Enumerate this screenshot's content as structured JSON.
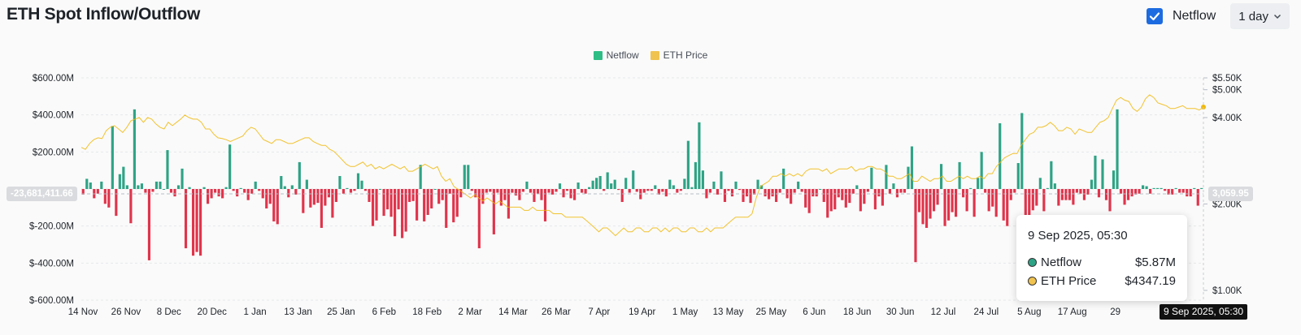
{
  "header": {
    "title": "ETH Spot Inflow/Outflow",
    "netflow_toggle_label": "Netflow",
    "interval_value": "1 day"
  },
  "colors": {
    "netflow_up": "#2ea385",
    "netflow_down": "#e0344b",
    "legend_netflow": "#2ebd85",
    "price_line": "#f0b90b",
    "grid": "#e6e8ea",
    "checkbox": "#1d6be0"
  },
  "icons": {
    "checkbox": "check-icon",
    "interval": "chevron-down-icon"
  },
  "crosshair": {
    "left_value": "-23,681,411.66",
    "right_value": "3,059.95",
    "time_label": "9 Sep 2025, 05:30"
  },
  "tooltip": {
    "time": "9 Sep 2025, 05:30",
    "rows": [
      {
        "label": "Netflow",
        "value": "$5.87M",
        "dot_color": "#2ea385"
      },
      {
        "label": "ETH Price",
        "value": "$4347.19",
        "dot_color": "#f0b90b"
      }
    ]
  },
  "chart_data": {
    "type": "bar",
    "title": "ETH Spot Inflow/Outflow",
    "legend": [
      "Netflow",
      "ETH Price"
    ],
    "legend_position": "top-center",
    "grid": true,
    "x_ticks": [
      "14 Nov",
      "26 Nov",
      "8 Dec",
      "20 Dec",
      "1 Jan",
      "13 Jan",
      "25 Jan",
      "6 Feb",
      "18 Feb",
      "2 Mar",
      "14 Mar",
      "26 Mar",
      "7 Apr",
      "19 Apr",
      "1 May",
      "13 May",
      "25 May",
      "6 Jun",
      "18 Jun",
      "30 Jun",
      "12 Jul",
      "24 Jul",
      "5 Aug",
      "17 Aug",
      "29"
    ],
    "y_left": {
      "ticks": [
        "$600.00M",
        "$400.00M",
        "$200.00M",
        "",
        "$-200.00M",
        "$-400.00M",
        "$-600.00M"
      ],
      "tick_values": [
        600,
        400,
        200,
        0,
        -200,
        -400,
        -600
      ],
      "ylim": [
        -600,
        600
      ],
      "unit": "USD millions"
    },
    "y_right": {
      "ticks": [
        "$5.50K",
        "$5.00K",
        "$4.00K",
        "$2.00K",
        "$1.00K"
      ],
      "tick_values": [
        5500,
        5000,
        4000,
        2000,
        1000
      ],
      "ylim": [
        1000,
        5500
      ],
      "scale": "log"
    },
    "series": [
      {
        "name": "Netflow",
        "type": "bar",
        "values": [
          -30,
          55,
          35,
          -50,
          -25,
          40,
          -80,
          -100,
          340,
          -145,
          80,
          120,
          20,
          -185,
          430,
          20,
          30,
          -20,
          -385,
          -15,
          40,
          40,
          0,
          210,
          -20,
          -40,
          20,
          110,
          -320,
          10,
          -360,
          -340,
          -360,
          10,
          -80,
          -50,
          -20,
          -40,
          -50,
          10,
          240,
          -10,
          -40,
          5,
          -20,
          -60,
          -25,
          40,
          -10,
          -50,
          -105,
          -80,
          -175,
          -190,
          70,
          15,
          -45,
          20,
          -30,
          145,
          -130,
          50,
          -100,
          -85,
          -75,
          -210,
          -90,
          -45,
          -155,
          -70,
          70,
          -25,
          5,
          -20,
          -10,
          85,
          45,
          -10,
          -70,
          -200,
          -170,
          0,
          -145,
          -110,
          -150,
          -255,
          -110,
          -265,
          -230,
          -70,
          -65,
          -170,
          130,
          -175,
          -140,
          -105,
          0,
          -80,
          -60,
          -210,
          -25,
          -180,
          -150,
          -45,
          130,
          130,
          -10,
          -45,
          -320,
          -80,
          -20,
          -15,
          -245,
          -20,
          -90,
          -60,
          -160,
          -20,
          -35,
          -60,
          -15,
          40,
          -20,
          -70,
          -25,
          -60,
          -175,
          -20,
          -30,
          -15,
          30,
          -45,
          -10,
          -50,
          -60,
          35,
          -20,
          -25,
          10,
          45,
          60,
          70,
          -10,
          90,
          30,
          50,
          -5,
          -70,
          60,
          -20,
          100,
          -15,
          -55,
          -20,
          -10,
          -10,
          20,
          -30,
          -15,
          -40,
          50,
          20,
          -20,
          -10,
          55,
          260,
          10,
          145,
          360,
          100,
          -50,
          -20,
          40,
          -30,
          95,
          -70,
          -10,
          -40,
          40,
          -5,
          -70,
          -40,
          -75,
          -30,
          50,
          20,
          -40,
          -55,
          -40,
          -70,
          -20,
          110,
          -50,
          -80,
          -20,
          40,
          -15,
          -100,
          -130,
          -40,
          -40,
          0,
          -70,
          -155,
          -120,
          -110,
          -45,
          -60,
          -100,
          -75,
          -25,
          20,
          -120,
          -80,
          -15,
          115,
          -110,
          -40,
          -90,
          130,
          -25,
          30,
          -45,
          -20,
          -20,
          120,
          230,
          -395,
          -125,
          -190,
          -210,
          -160,
          -120,
          -85,
          135,
          -200,
          -170,
          -125,
          -150,
          145,
          -45,
          -120,
          5,
          -150,
          60,
          200,
          -20,
          -120,
          -95,
          -150,
          355,
          -170,
          -200,
          -60,
          -20,
          140,
          410,
          -210,
          -155,
          -115,
          -90,
          60,
          -120,
          5,
          150,
          30,
          -90,
          -60,
          -60,
          -60,
          -85,
          -20,
          -25,
          -60,
          -30,
          50,
          180,
          -45,
          160,
          -60,
          -120,
          100,
          430,
          -25,
          -85,
          -60,
          -40,
          -30,
          -25,
          20,
          15,
          -25,
          5,
          5,
          5,
          -10,
          -30,
          -30,
          5,
          -20,
          -20,
          -40,
          -40,
          5,
          -90,
          5
        ]
      },
      {
        "name": "ETH Price",
        "type": "line",
        "values": [
          3150,
          3100,
          3250,
          3350,
          3400,
          3380,
          3600,
          3700,
          3750,
          3650,
          3550,
          3700,
          3900,
          3950,
          4000,
          3850,
          4000,
          3950,
          3800,
          3700,
          3650,
          3850,
          3750,
          3850,
          3950,
          4080,
          4000,
          3950,
          3950,
          3850,
          3650,
          3650,
          3500,
          3400,
          3380,
          3350,
          3300,
          3350,
          3400,
          3450,
          3600,
          3700,
          3650,
          3500,
          3350,
          3300,
          3250,
          3350,
          3350,
          3300,
          3250,
          3250,
          3300,
          3350,
          3400,
          3400,
          3300,
          3250,
          3200,
          3200,
          3100,
          3050,
          2950,
          2850,
          2750,
          2700,
          2700,
          2750,
          2800,
          2700,
          2750,
          2650,
          2700,
          2650,
          2700,
          2750,
          2700,
          2650,
          2700,
          2600,
          2600,
          2650,
          2700,
          2750,
          2700,
          2650,
          2700,
          2500,
          2400,
          2450,
          2300,
          2250,
          2200,
          2150,
          2100,
          2150,
          2100,
          2050,
          2100,
          2050,
          2000,
          2050,
          2000,
          1950,
          1950,
          1950,
          1950,
          1900,
          1900,
          1950,
          1900,
          1900,
          1900,
          1900,
          1850,
          1850,
          1850,
          1800,
          1800,
          1800,
          1800,
          1800,
          1750,
          1700,
          1650,
          1600,
          1650,
          1650,
          1600,
          1550,
          1600,
          1650,
          1600,
          1600,
          1650,
          1650,
          1600,
          1600,
          1650,
          1650,
          1600,
          1650,
          1600,
          1650,
          1650,
          1600,
          1600,
          1650,
          1650,
          1600,
          1600,
          1650,
          1600,
          1650,
          1650,
          1650,
          1700,
          1750,
          1800,
          1800,
          1800,
          1800,
          1850,
          2100,
          2300,
          2350,
          2400,
          2500,
          2500,
          2550,
          2500,
          2550,
          2500,
          2550,
          2500,
          2600,
          2650,
          2650,
          2650,
          2600,
          2650,
          2550,
          2600,
          2650,
          2650,
          2650,
          2700,
          2600,
          2650,
          2650,
          2700,
          2700,
          2650,
          2650,
          2600,
          2500,
          2500,
          2450,
          2450,
          2500,
          2550,
          2400,
          2400,
          2500,
          2450,
          2400,
          2450,
          2450,
          2500,
          2400,
          2400,
          2450,
          2500,
          2450,
          2500,
          2450,
          2450,
          2500,
          2450,
          2550,
          2550,
          2700,
          2800,
          2900,
          2950,
          3000,
          3000,
          3200,
          3350,
          3500,
          3550,
          3700,
          3700,
          3750,
          3850,
          3750,
          3600,
          3600,
          3700,
          3650,
          3500,
          3650,
          3600,
          3550,
          3550,
          3700,
          3850,
          3900,
          4000,
          4300,
          4600,
          4700,
          4600,
          4550,
          4300,
          4200,
          4350,
          4650,
          4800,
          4700,
          4500,
          4450,
          4400,
          4300,
          4300,
          4350,
          4400,
          4300,
          4300,
          4300,
          4250,
          4350
        ]
      }
    ]
  }
}
